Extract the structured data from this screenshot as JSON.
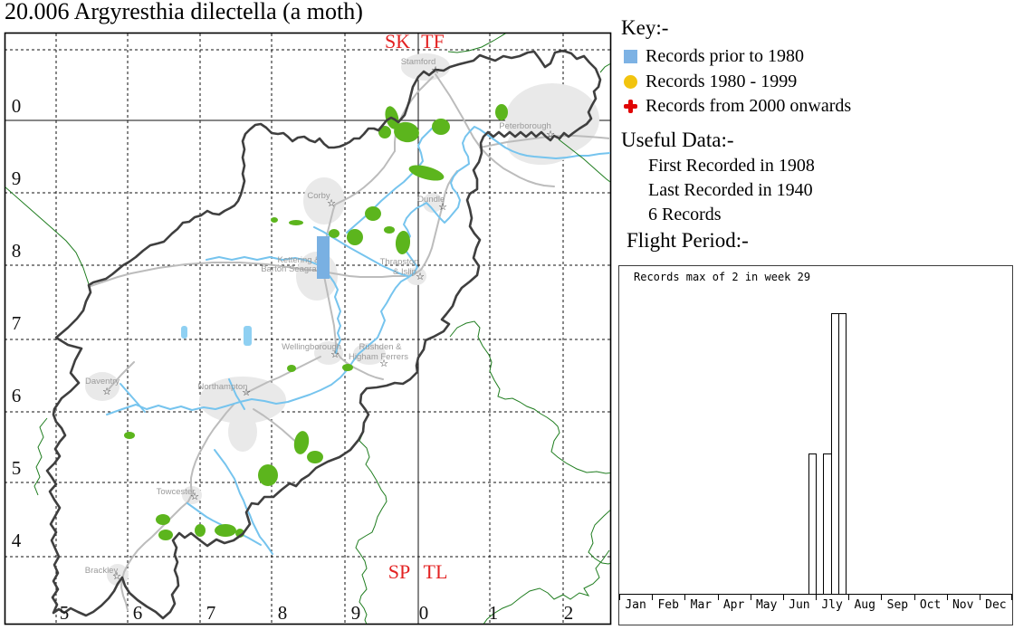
{
  "title": "20.006 Argyresthia dilectella (a moth)",
  "key": {
    "heading": "Key:-",
    "items": [
      {
        "label": "Records prior to 1980",
        "marker": "blue-square",
        "color": "#7db2e4"
      },
      {
        "label": "Records 1980 - 1999",
        "marker": "yellow-circle",
        "color": "#f2c40f"
      },
      {
        "label": "Records from 2000 onwards",
        "marker": "red-cross",
        "color": "#e00505"
      }
    ]
  },
  "useful_data": {
    "heading": "Useful Data:-",
    "lines": [
      "First Recorded in 1908",
      "Last Recorded in 1940",
      "6 Records"
    ]
  },
  "flight": {
    "heading": "Flight Period:-",
    "annotation": "Records max of 2 in week 29"
  },
  "chart_data": {
    "type": "bar",
    "title": "Flight Period",
    "annotation": "Records max of 2 in week 29",
    "x_unit": "week",
    "weeks": 52,
    "points": [
      {
        "week": 26,
        "count": 1
      },
      {
        "week": 28,
        "count": 1
      },
      {
        "week": 29,
        "count": 2
      },
      {
        "week": 30,
        "count": 2
      }
    ],
    "month_labels": [
      "Jan",
      "Feb",
      "Mar",
      "Apr",
      "May",
      "Jun",
      "Jly",
      "Aug",
      "Sep",
      "Oct",
      "Nov",
      "Dec"
    ],
    "ylim": [
      0,
      2.35
    ],
    "max_count": 2,
    "max_week": 29,
    "grid": false,
    "bar_fill": "#ffffff",
    "bar_stroke": "#000000"
  },
  "map": {
    "squares": {
      "top_left": "SK",
      "top_right": "TF",
      "bottom_left": "SP",
      "bottom_right": "TL"
    },
    "y_axis": [
      "0",
      "9",
      "8",
      "7",
      "6",
      "5",
      "4"
    ],
    "x_axis": [
      "5",
      "6",
      "7",
      "8",
      "9",
      "0",
      "1",
      "2"
    ],
    "towns": [
      {
        "name": "Stamford",
        "lines": [
          "Stamford"
        ]
      },
      {
        "name": "Peterborough",
        "lines": [
          "Peterborough"
        ]
      },
      {
        "name": "Corby",
        "lines": [
          "Corby"
        ]
      },
      {
        "name": "Oundle",
        "lines": [
          "Oundle"
        ]
      },
      {
        "name": "Kettering & Barton Seagrave",
        "lines": [
          "Kettering &",
          "Barton Seagrave"
        ]
      },
      {
        "name": "Thrapston & Islip",
        "lines": [
          "Thrapston",
          "& Islip"
        ]
      },
      {
        "name": "Wellingborough",
        "lines": [
          "Wellingborough"
        ]
      },
      {
        "name": "Rushden & Higham Ferrers",
        "lines": [
          "Rushden &",
          "Higham Ferrers"
        ]
      },
      {
        "name": "Daventry",
        "lines": [
          "Daventry"
        ]
      },
      {
        "name": "Northampton",
        "lines": [
          "Northampton"
        ]
      },
      {
        "name": "Towcester",
        "lines": [
          "Towcester"
        ]
      },
      {
        "name": "Brackley",
        "lines": [
          "Brackley"
        ]
      }
    ],
    "record_markers": [
      {
        "period": "Records prior to 1980",
        "shape": "blue-rectangle"
      }
    ],
    "colors": {
      "county_boundary": "#3f3f3f",
      "vice_county_boundary": "#1f7d1f",
      "river": "#76c4ee",
      "road": "#bcbcbc",
      "woodland": "#5cb51d",
      "urban": "#e9e9e9",
      "grid_letters": "#e32222",
      "marker_blue": "#79b0e2"
    }
  }
}
